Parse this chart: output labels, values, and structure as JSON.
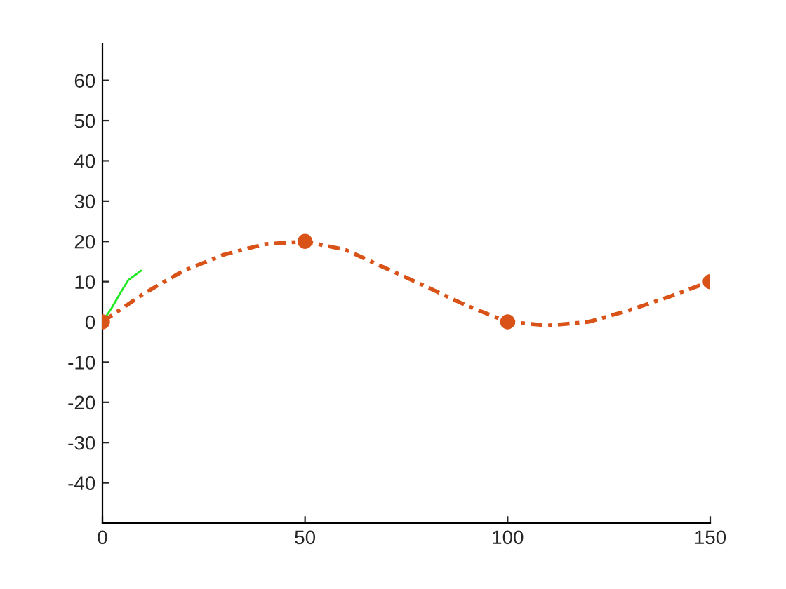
{
  "chart_data": {
    "type": "line",
    "xlim": [
      0,
      150
    ],
    "ylim": [
      -50,
      69
    ],
    "xticks": [
      0,
      50,
      100,
      150
    ],
    "yticks": [
      -40,
      -30,
      -20,
      -10,
      0,
      10,
      20,
      30,
      40,
      50,
      60
    ],
    "grid": false,
    "legend": false,
    "series": [
      {
        "color": "#d95319",
        "line_style": "dashed",
        "marker": "none",
        "x": [
          0,
          10,
          20,
          30,
          40,
          50,
          60,
          70,
          80,
          90,
          100,
          110,
          120,
          130,
          140,
          150
        ],
        "values": [
          0,
          6.9,
          12.7,
          16.7,
          19.3,
          20,
          17.9,
          13.3,
          8.7,
          4.0,
          0,
          -0.9,
          0,
          2.9,
          6.3,
          10
        ]
      },
      {
        "type": "scatter",
        "color": "#d95319",
        "marker": "circle",
        "x": [
          0,
          50,
          100,
          150
        ],
        "values": [
          0,
          20,
          0,
          10
        ]
      },
      {
        "color": "#1ee81e",
        "line_style": "solid",
        "marker": "none",
        "x": [
          0,
          2.3,
          4.6,
          6.4,
          9.5
        ],
        "values": [
          0,
          3.5,
          7.5,
          10.4,
          12.7
        ]
      }
    ]
  }
}
